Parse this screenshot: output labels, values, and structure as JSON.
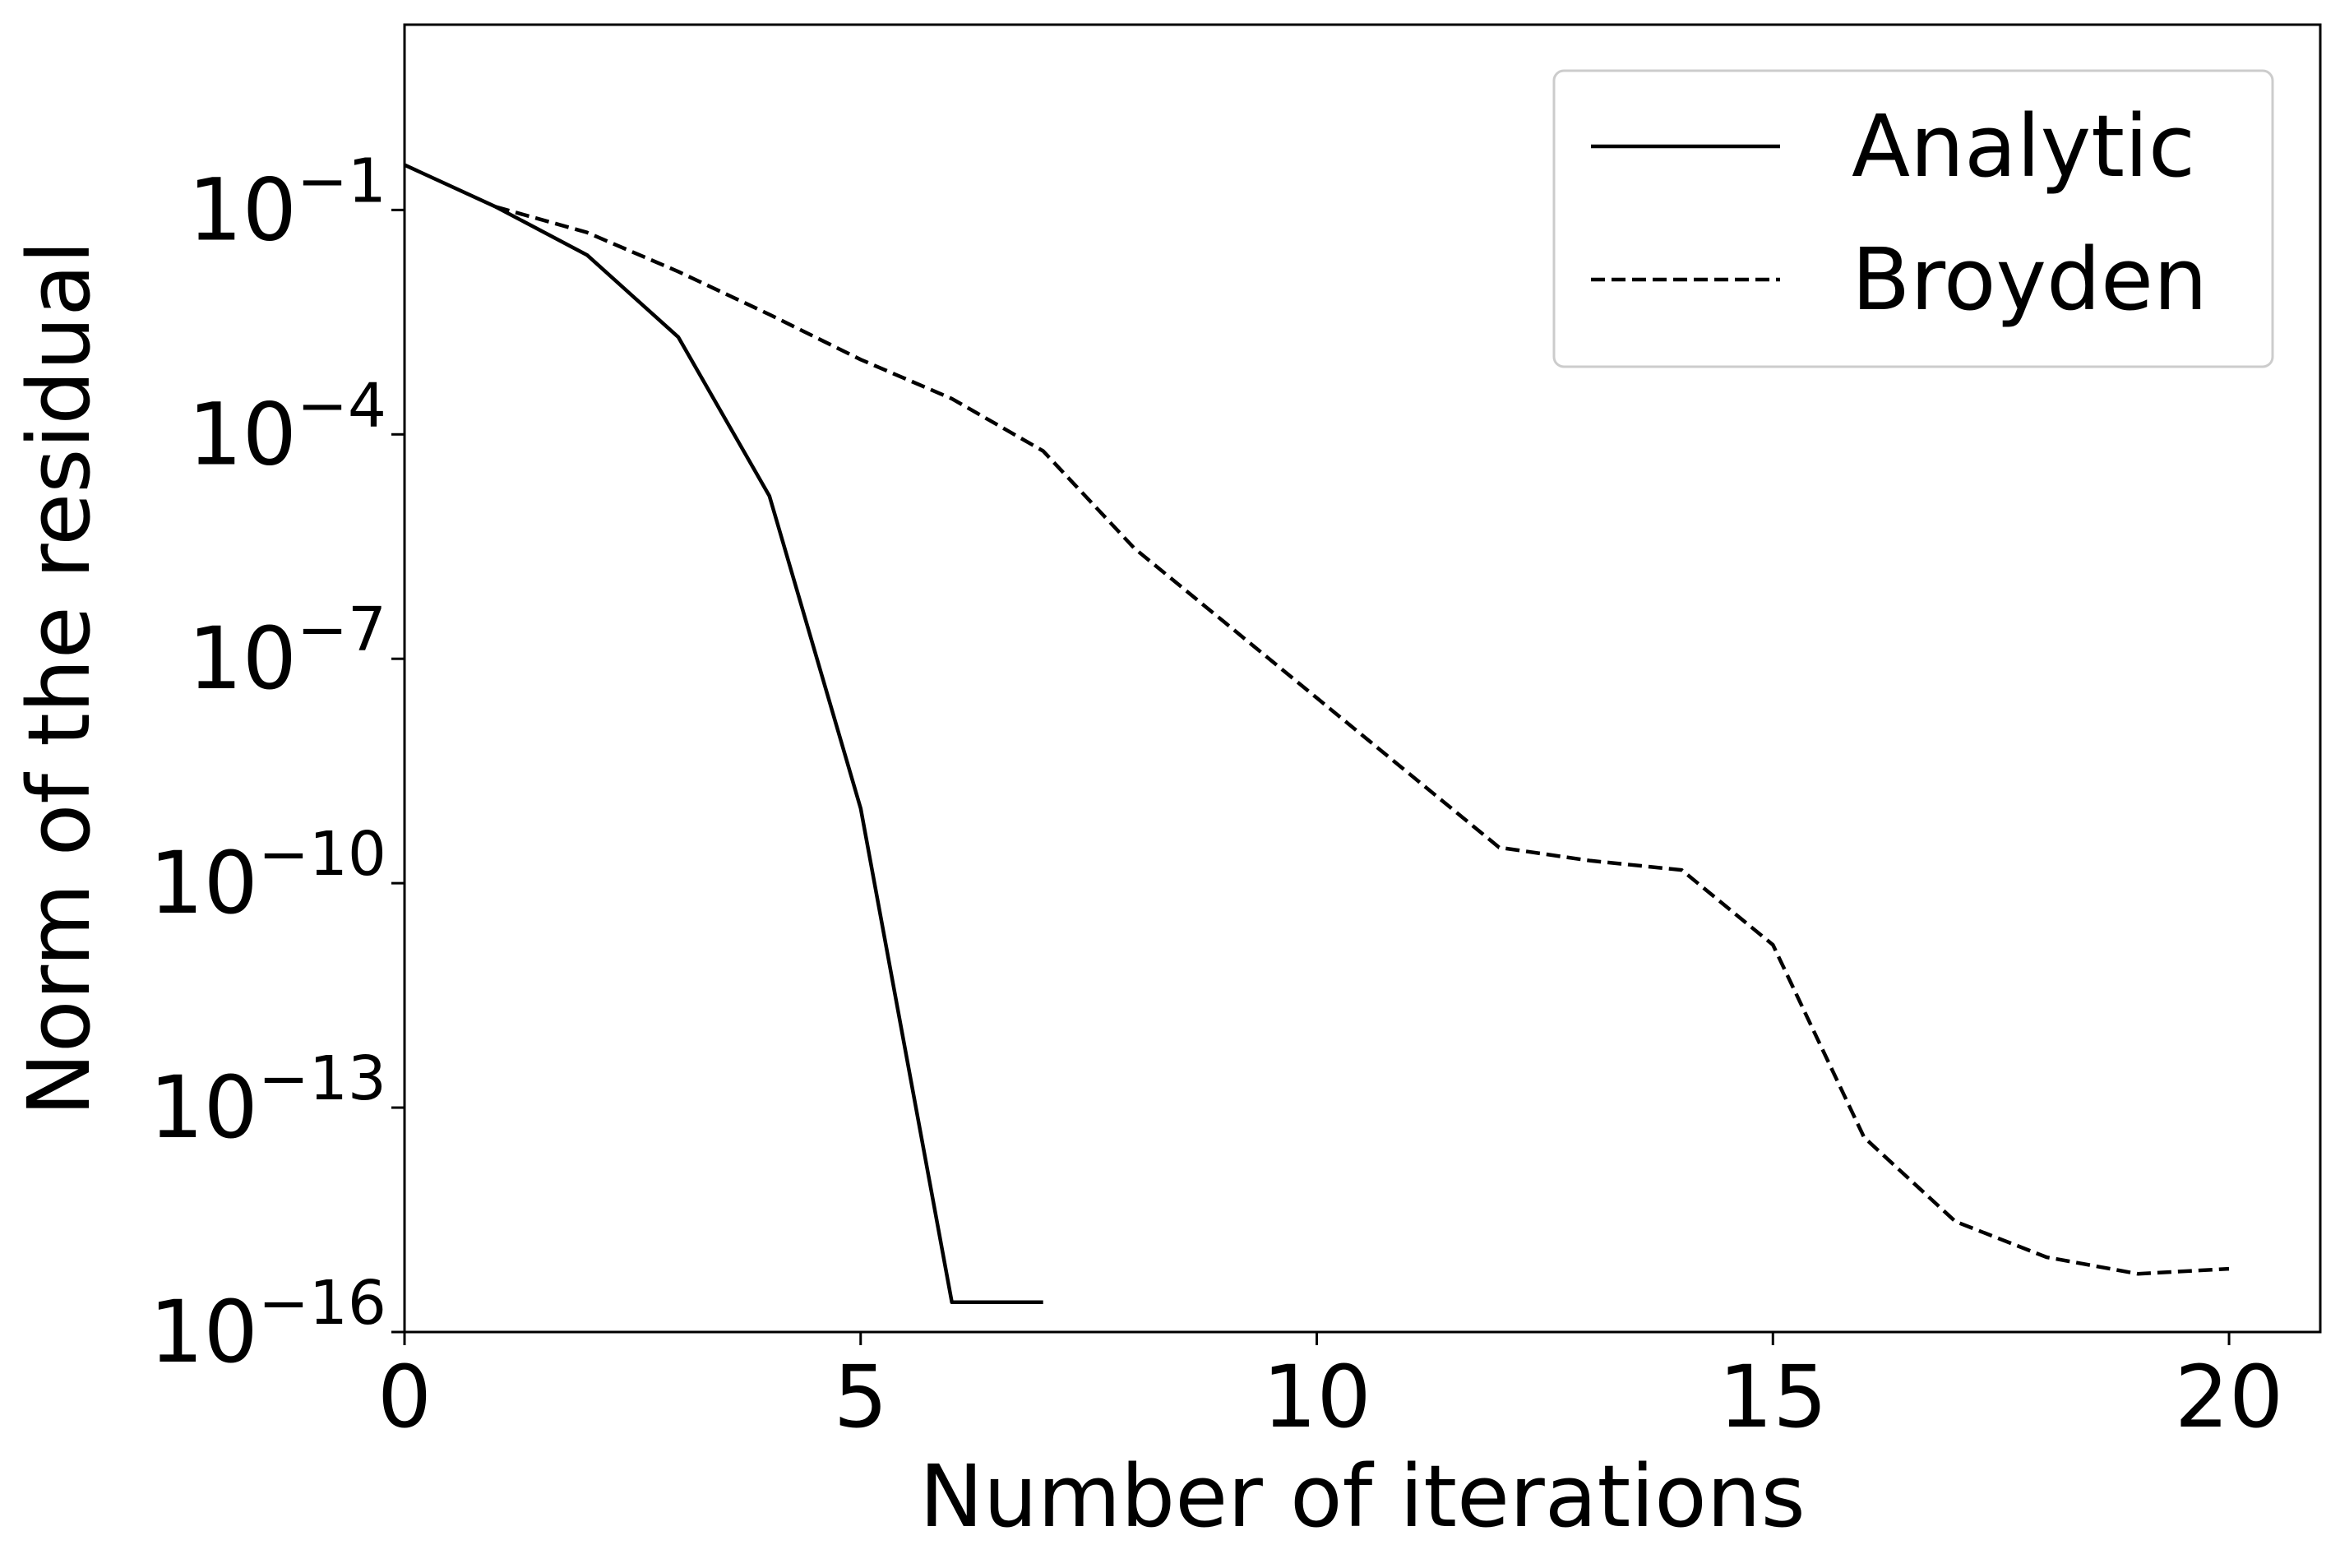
{
  "chart_data": {
    "type": "line",
    "xlabel": "Number of iterations",
    "ylabel": "Norm of the residual",
    "yscale": "log",
    "xlim": [
      0,
      21
    ],
    "ylim": [
      1e-16,
      30.0
    ],
    "grid": false,
    "legend_position": "top-right",
    "xticks": [
      0,
      5,
      10,
      15,
      20
    ],
    "yticks": [
      {
        "value": 0.1,
        "base": "10",
        "exp": "−1"
      },
      {
        "value": 0.0001,
        "base": "10",
        "exp": "−4"
      },
      {
        "value": 1e-07,
        "base": "10",
        "exp": "−7"
      },
      {
        "value": 1e-10,
        "base": "10",
        "exp": "−10"
      },
      {
        "value": 1e-13,
        "base": "10",
        "exp": "−13"
      },
      {
        "value": 1e-16,
        "base": "10",
        "exp": "−16"
      }
    ],
    "series": [
      {
        "name": "Analytic",
        "color": "#000000",
        "style": "solid",
        "x": [
          0,
          1,
          2,
          3,
          4,
          5,
          6,
          7
        ],
        "y": [
          0.4,
          0.11,
          0.025,
          0.002,
          1.5e-05,
          1e-09,
          2.5e-16,
          2.5e-16
        ]
      },
      {
        "name": "Broyden",
        "color": "#000000",
        "style": "dashed",
        "x": [
          1,
          2,
          3,
          4,
          5,
          6,
          7,
          8,
          9,
          10,
          11,
          12,
          13,
          14,
          15,
          16,
          17,
          18,
          19,
          20
        ],
        "y": [
          0.11,
          0.05,
          0.015,
          0.004,
          0.001,
          0.0003,
          6e-05,
          3e-06,
          3e-07,
          3e-08,
          3e-09,
          3e-10,
          2e-10,
          1.5e-10,
          1.5e-11,
          4e-14,
          3e-15,
          1e-15,
          6e-16,
          7e-16
        ]
      }
    ]
  }
}
